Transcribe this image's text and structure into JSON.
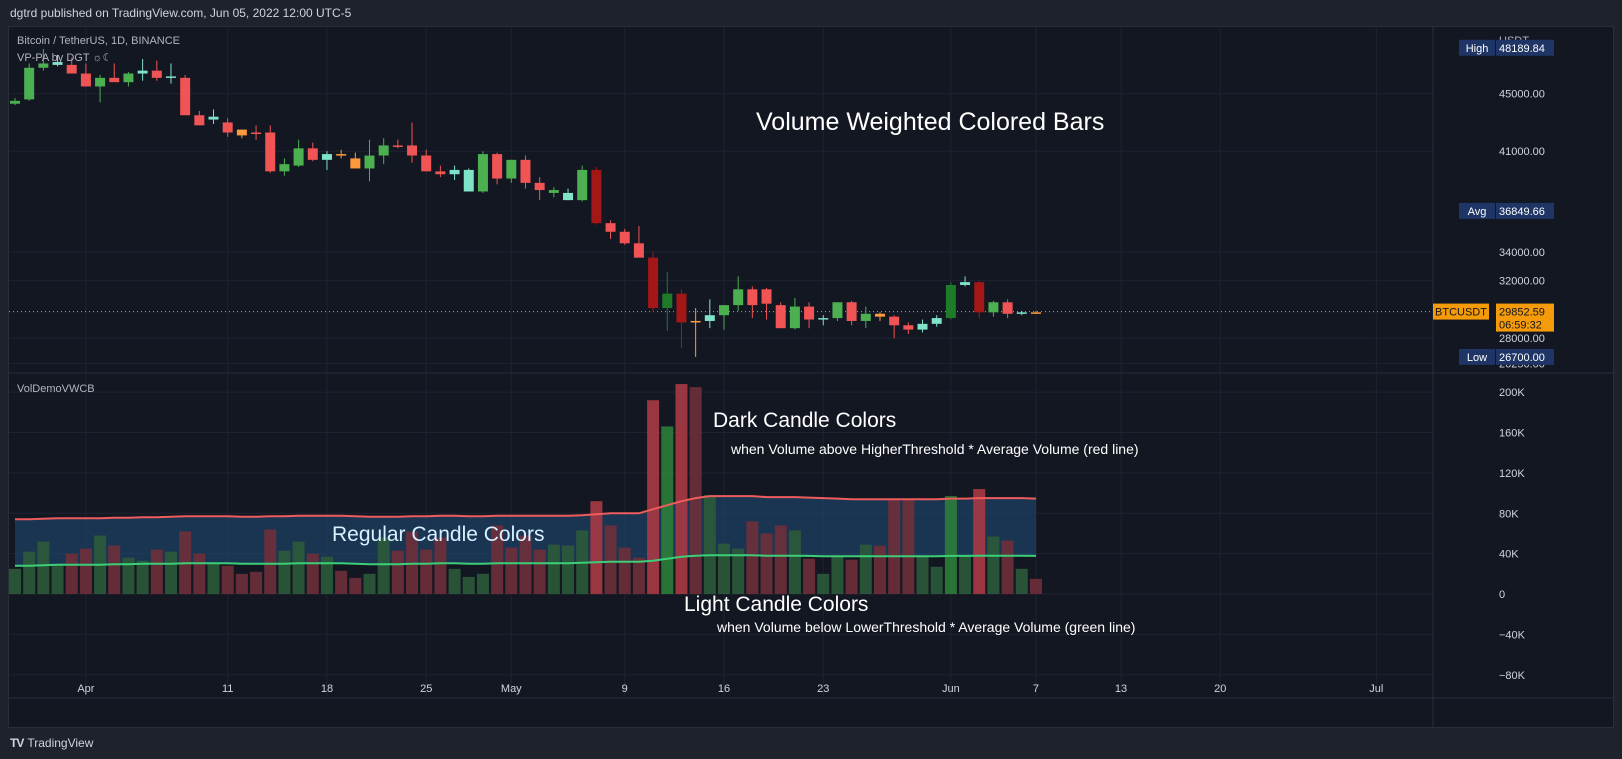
{
  "header": {
    "published": "dgtrd published on TradingView.com, Jun 05, 2022 12:00 UTC-5"
  },
  "footer": {
    "brand_logo": "TV",
    "brand": "TradingView"
  },
  "colors": {
    "bg": "#131722",
    "grid": "#1f2330",
    "up": "#4caf50",
    "down": "#f05454",
    "up_dark": "#1f7a2a",
    "down_dark": "#a31717",
    "up_light": "#7fe3c8",
    "down_light": "#ff9a3c",
    "label_blue": "#1f3566",
    "last": "#f59a08"
  },
  "chart_data": [
    {
      "type": "candlestick",
      "symbol": "Bitcoin / TetherUS, 1D, BINANCE",
      "indicator": "VP-PA by DGT ☼☾",
      "annotation": "Volume Weighted Colored Bars",
      "currency": "USDT",
      "y_ticks": [
        "45000.00",
        "41000.00",
        "34000.00",
        "32000.00",
        "28000.00",
        "26250.00"
      ],
      "y_tick_values": [
        45000,
        41000,
        34000,
        32000,
        28000,
        26250
      ],
      "ylim": [
        26000,
        48800
      ],
      "stats": [
        {
          "label": "High",
          "value": "48189.84",
          "num": 48189.84
        },
        {
          "label": "Avg",
          "value": "36849.66",
          "num": 36849.66
        },
        {
          "label": "Low",
          "value": "26700.00",
          "num": 26700.0
        }
      ],
      "last": {
        "label": "BTCUSDT",
        "value": "29852.59",
        "countdown": "06:59:32",
        "num": 29852.59
      },
      "x_labels": [
        "Apr",
        "11",
        "18",
        "25",
        "May",
        "9",
        "16",
        "23",
        "Jun",
        "7",
        "13",
        "20",
        "Jul"
      ],
      "x_label_index": [
        5,
        15,
        22,
        29,
        35,
        43,
        50,
        57,
        66,
        72,
        78,
        85,
        96
      ],
      "ohlc": [
        [
          44300,
          44700,
          44200,
          44500,
          "u"
        ],
        [
          44600,
          47100,
          44500,
          46800,
          "u"
        ],
        [
          46800,
          48100,
          46600,
          47100,
          "u"
        ],
        [
          47200,
          47700,
          46900,
          47000,
          "ul"
        ],
        [
          47000,
          47500,
          46600,
          46400,
          "d"
        ],
        [
          46400,
          47100,
          45600,
          45500,
          "d"
        ],
        [
          45500,
          46300,
          44400,
          46100,
          "u"
        ],
        [
          46100,
          47100,
          45900,
          45800,
          "d"
        ],
        [
          45800,
          46500,
          45500,
          46400,
          "u"
        ],
        [
          46400,
          47400,
          45900,
          46600,
          "ul"
        ],
        [
          46600,
          47300,
          45900,
          46100,
          "d"
        ],
        [
          46200,
          47100,
          45700,
          46100,
          "ul"
        ],
        [
          46100,
          46300,
          43600,
          43500,
          "d"
        ],
        [
          43500,
          43800,
          42800,
          42800,
          "d"
        ],
        [
          43400,
          43900,
          42900,
          43200,
          "ul"
        ],
        [
          43000,
          43300,
          42000,
          42300,
          "d"
        ],
        [
          42100,
          42500,
          41900,
          42500,
          "dl"
        ],
        [
          42300,
          42800,
          41800,
          42300,
          "d"
        ],
        [
          42300,
          42800,
          39500,
          39600,
          "d"
        ],
        [
          39600,
          40500,
          39300,
          40100,
          "u"
        ],
        [
          40000,
          41800,
          39900,
          41200,
          "u"
        ],
        [
          41200,
          41600,
          40300,
          40400,
          "d"
        ],
        [
          40400,
          41000,
          39700,
          40800,
          "ul"
        ],
        [
          40800,
          41100,
          40500,
          40700,
          "dl"
        ],
        [
          40500,
          40900,
          39900,
          39800,
          "dl"
        ],
        [
          39800,
          41800,
          38900,
          40700,
          "u"
        ],
        [
          40700,
          41900,
          40100,
          41400,
          "u"
        ],
        [
          41400,
          41800,
          41200,
          41400,
          "d"
        ],
        [
          41400,
          43000,
          40200,
          40700,
          "d"
        ],
        [
          40700,
          41100,
          39600,
          39600,
          "d"
        ],
        [
          39600,
          40000,
          39200,
          39400,
          "d"
        ],
        [
          39400,
          40000,
          39000,
          39700,
          "ul"
        ],
        [
          39700,
          39800,
          38300,
          38200,
          "ul"
        ],
        [
          38200,
          41000,
          38100,
          40800,
          "u"
        ],
        [
          40800,
          40900,
          38700,
          39100,
          "d"
        ],
        [
          39100,
          40400,
          38800,
          40400,
          "u"
        ],
        [
          40400,
          40700,
          38400,
          38800,
          "d"
        ],
        [
          38800,
          39200,
          37600,
          38300,
          "d"
        ],
        [
          38300,
          38500,
          37800,
          38100,
          "u"
        ],
        [
          38100,
          38400,
          37600,
          37600,
          "ul"
        ],
        [
          37600,
          40000,
          37500,
          39700,
          "u"
        ],
        [
          39700,
          39900,
          35900,
          36000,
          "dd"
        ],
        [
          36000,
          36200,
          34900,
          35400,
          "d"
        ],
        [
          35400,
          35600,
          34500,
          34600,
          "d"
        ],
        [
          34600,
          35800,
          33700,
          33600,
          "d"
        ],
        [
          33600,
          34000,
          29800,
          30100,
          "dd"
        ],
        [
          30100,
          32600,
          28500,
          31100,
          "ud"
        ],
        [
          31100,
          31400,
          27300,
          29100,
          "dd"
        ],
        [
          29100,
          30100,
          26700,
          29200,
          "dl"
        ],
        [
          29200,
          30700,
          28700,
          29600,
          "ul"
        ],
        [
          29600,
          30300,
          28600,
          30300,
          "u"
        ],
        [
          30300,
          32300,
          29900,
          31400,
          "u"
        ],
        [
          31400,
          31600,
          29400,
          30300,
          "d"
        ],
        [
          30400,
          31500,
          29300,
          31400,
          "d"
        ],
        [
          30300,
          30500,
          28700,
          28700,
          "d"
        ],
        [
          28700,
          30800,
          28600,
          30200,
          "u"
        ],
        [
          30200,
          30500,
          28700,
          29300,
          "d"
        ],
        [
          29300,
          29600,
          28900,
          29400,
          "ul"
        ],
        [
          29400,
          30500,
          29200,
          30500,
          "u"
        ],
        [
          30500,
          30600,
          28900,
          29200,
          "d"
        ],
        [
          29200,
          30200,
          28700,
          29700,
          "u"
        ],
        [
          29700,
          29800,
          29200,
          29500,
          "dl"
        ],
        [
          29500,
          29600,
          28000,
          28900,
          "d"
        ],
        [
          28900,
          29100,
          28300,
          28600,
          "d"
        ],
        [
          28600,
          29300,
          28400,
          29000,
          "ul"
        ],
        [
          29000,
          29600,
          28800,
          29400,
          "ul"
        ],
        [
          29400,
          31900,
          29300,
          31700,
          "ud"
        ],
        [
          31700,
          32300,
          31600,
          31900,
          "ul"
        ],
        [
          31900,
          32000,
          29400,
          29800,
          "dd"
        ],
        [
          29800,
          30600,
          29500,
          30500,
          "u"
        ],
        [
          30500,
          30700,
          29400,
          29700,
          "d"
        ],
        [
          29700,
          29900,
          29600,
          29800,
          "ul"
        ],
        [
          29800,
          29900,
          29700,
          29800,
          "dl"
        ]
      ]
    },
    {
      "type": "bar",
      "indicator": "VolDemoVWCB",
      "y_ticks": [
        "200K",
        "160K",
        "120K",
        "80K",
        "40K",
        "0",
        "−40K",
        "−80K"
      ],
      "y_tick_values": [
        200000,
        160000,
        120000,
        80000,
        40000,
        0,
        -40000,
        -80000
      ],
      "ylim": [
        -100000,
        215000
      ],
      "volumes": [
        [
          25000,
          "u"
        ],
        [
          42000,
          "u"
        ],
        [
          52000,
          "u"
        ],
        [
          30000,
          "ul"
        ],
        [
          40000,
          "d"
        ],
        [
          45000,
          "d"
        ],
        [
          58000,
          "u"
        ],
        [
          48000,
          "d"
        ],
        [
          36000,
          "u"
        ],
        [
          33000,
          "ul"
        ],
        [
          44000,
          "d"
        ],
        [
          42000,
          "ul"
        ],
        [
          62000,
          "d"
        ],
        [
          40000,
          "d"
        ],
        [
          30000,
          "ul"
        ],
        [
          28000,
          "d"
        ],
        [
          20000,
          "dl"
        ],
        [
          22000,
          "d"
        ],
        [
          64000,
          "d"
        ],
        [
          43000,
          "u"
        ],
        [
          52000,
          "u"
        ],
        [
          40000,
          "d"
        ],
        [
          37000,
          "ul"
        ],
        [
          23000,
          "dl"
        ],
        [
          16000,
          "dl"
        ],
        [
          20000,
          "u"
        ],
        [
          56000,
          "u"
        ],
        [
          43000,
          "d"
        ],
        [
          62000,
          "d"
        ],
        [
          44000,
          "d"
        ],
        [
          56000,
          "d"
        ],
        [
          25000,
          "ul"
        ],
        [
          17000,
          "ul"
        ],
        [
          20000,
          "u"
        ],
        [
          68000,
          "d"
        ],
        [
          46000,
          "d"
        ],
        [
          58000,
          "d"
        ],
        [
          44000,
          "d"
        ],
        [
          49000,
          "u"
        ],
        [
          48000,
          "ul"
        ],
        [
          63000,
          "u"
        ],
        [
          92000,
          "dd"
        ],
        [
          68000,
          "d"
        ],
        [
          46000,
          "d"
        ],
        [
          36000,
          "d"
        ],
        [
          192000,
          "dd"
        ],
        [
          166000,
          "ud"
        ],
        [
          208000,
          "dd"
        ],
        [
          205000,
          "dl"
        ],
        [
          98000,
          "ul"
        ],
        [
          50000,
          "u"
        ],
        [
          45000,
          "u"
        ],
        [
          72000,
          "d"
        ],
        [
          60000,
          "d"
        ],
        [
          68000,
          "d"
        ],
        [
          63000,
          "u"
        ],
        [
          35000,
          "d"
        ],
        [
          20000,
          "ul"
        ],
        [
          38000,
          "u"
        ],
        [
          34000,
          "d"
        ],
        [
          49000,
          "u"
        ],
        [
          48000,
          "dl"
        ],
        [
          94000,
          "d"
        ],
        [
          94000,
          "d"
        ],
        [
          37000,
          "ul"
        ],
        [
          27000,
          "ul"
        ],
        [
          97000,
          "ud"
        ],
        [
          38000,
          "ul"
        ],
        [
          104000,
          "dd"
        ],
        [
          57000,
          "u"
        ],
        [
          53000,
          "d"
        ],
        [
          25000,
          "ul"
        ],
        [
          15000,
          "dl"
        ]
      ],
      "avg_line": [
        74000,
        74000,
        74500,
        75000,
        75000,
        75000,
        75000,
        75500,
        75500,
        76000,
        76000,
        76500,
        77000,
        77000,
        77000,
        77000,
        76500,
        76500,
        77000,
        77000,
        77500,
        77500,
        77500,
        77500,
        77000,
        76500,
        76500,
        76500,
        77000,
        77000,
        77500,
        77500,
        77000,
        77000,
        77500,
        77500,
        77500,
        77500,
        77500,
        77500,
        78000,
        79000,
        80000,
        80000,
        80000,
        84000,
        88000,
        92000,
        95000,
        97000,
        97000,
        97000,
        97000,
        96000,
        96000,
        96000,
        95500,
        95000,
        94500,
        94000,
        94000,
        94000,
        94000,
        94000,
        94000,
        94000,
        94500,
        94500,
        95000,
        95000,
        95000,
        95000,
        94500
      ],
      "lower_line": [
        28000,
        28000,
        28500,
        29000,
        29000,
        29000,
        29000,
        29500,
        29500,
        30000,
        30000,
        30000,
        30500,
        30500,
        30500,
        30500,
        30000,
        30000,
        30000,
        30000,
        30500,
        30500,
        30500,
        30500,
        30000,
        29500,
        29500,
        29500,
        30000,
        30000,
        30500,
        30500,
        30000,
        30000,
        30500,
        30500,
        30500,
        30500,
        30500,
        30500,
        31000,
        31500,
        32000,
        32000,
        32000,
        33000,
        35000,
        37000,
        38000,
        38500,
        38500,
        38500,
        38500,
        38000,
        38000,
        38000,
        37800,
        37500,
        37500,
        37500,
        37500,
        37500,
        37500,
        37500,
        37500,
        37500,
        37800,
        37800,
        38000,
        38000,
        38000,
        38000,
        37800
      ],
      "annotations": {
        "dark": "Dark Candle Colors",
        "dark_sub": "when Volume above HigherThreshold * Average Volume (red line)",
        "regular": "Regular Candle Colors",
        "light": "Light Candle Colors",
        "light_sub": "when Volume below LowerThreshold * Average Volume (green line)"
      }
    }
  ]
}
